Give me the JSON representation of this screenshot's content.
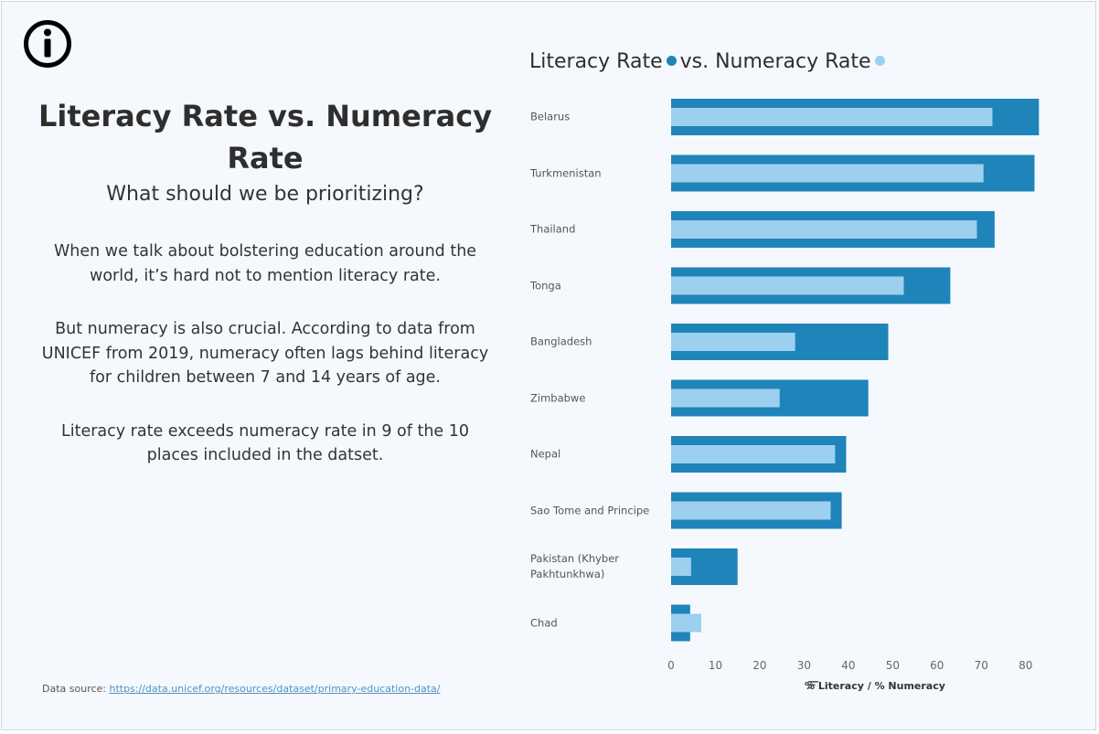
{
  "page": {
    "main_title": "Literacy Rate vs. Numeracy Rate",
    "subtitle": "What should we be prioritizing?",
    "paragraph_1": "When we talk about bolstering education around the world, it’s hard not to mention literacy rate.",
    "paragraph_2": "But numeracy is also crucial. According to data from UNICEF from 2019, numeracy often lags behind literacy for children between 7 and 14 years of age.",
    "paragraph_3": "Literacy rate exceeds numeracy rate in 9 of the 10 places included in the datset.",
    "source_label": "Data source:",
    "source_link": "https://data.unicef.org/resources/dataset/primary-education-data/",
    "icons": {
      "info": "info-circle-icon",
      "sort": "sort-descending-icon"
    }
  },
  "colors": {
    "literacy": "#1f84b9",
    "numeracy": "#9dd0ef",
    "tick": "#666666"
  },
  "chart_data": {
    "type": "bar",
    "orientation": "horizontal",
    "title_part_1": "Literacy Rate",
    "title_part_2": "vs. Numeracy Rate",
    "xlabel": "% Literacy / % Numeracy",
    "xlim": [
      0,
      85
    ],
    "xticks": [
      0,
      10,
      20,
      30,
      40,
      50,
      60,
      70,
      80
    ],
    "categories": [
      "Belarus",
      "Turkmenistan",
      "Thailand",
      "Tonga",
      "Bangladesh",
      "Zimbabwe",
      "Nepal",
      "Sao Tome and Principe",
      "Pakistan (Khyber Pakhtunkhwa)",
      "Chad"
    ],
    "series": [
      {
        "name": "Literacy Rate",
        "values": [
          83,
          82,
          73,
          63,
          49,
          44.5,
          39.5,
          38.5,
          15,
          4.3
        ]
      },
      {
        "name": "Numeracy Rate",
        "values": [
          72.5,
          70.5,
          69,
          52.5,
          28,
          24.5,
          37,
          36,
          4.5,
          6.8
        ]
      }
    ]
  }
}
